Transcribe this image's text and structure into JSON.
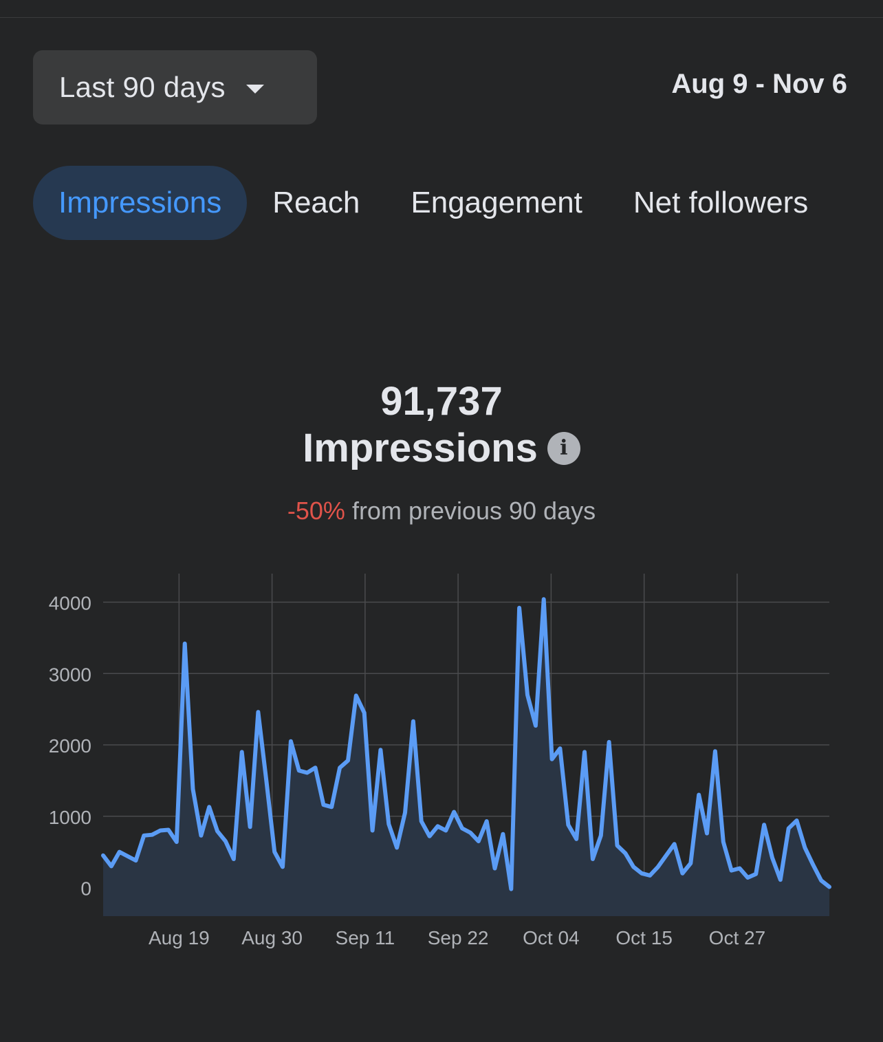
{
  "header": {
    "range_label": "Last 90 days",
    "date_range": "Aug 9 - Nov 6"
  },
  "tabs": [
    {
      "label": "Impressions",
      "active": true
    },
    {
      "label": "Reach",
      "active": false
    },
    {
      "label": "Engagement",
      "active": false
    },
    {
      "label": "Net followers",
      "active": false
    }
  ],
  "summary": {
    "total": "91,737",
    "metric": "Impressions",
    "change_pct": "-50%",
    "change_text": "from previous 90 days"
  },
  "colors": {
    "line": "#5b9cf5",
    "fill": "#2a3544",
    "accent": "#4599ff",
    "negative": "#e0534a"
  },
  "chart_data": {
    "type": "area",
    "xlabel": "",
    "ylabel": "",
    "ylim": [
      -400,
      4400
    ],
    "yticks": [
      0,
      1000,
      2000,
      3000,
      4000
    ],
    "xtick_labels": [
      "Aug 19",
      "Aug 30",
      "Sep 11",
      "Sep 22",
      "Oct 04",
      "Oct 15",
      "Oct 27"
    ],
    "xtick_index": [
      9.3,
      20.7,
      32.1,
      43.5,
      54.9,
      66.3,
      77.7
    ],
    "grid": true,
    "legend": false,
    "series": [
      {
        "values": [
          450,
          300,
          500,
          440,
          380,
          730,
          740,
          800,
          810,
          640,
          3420,
          1380,
          730,
          1130,
          790,
          650,
          400,
          1900,
          850,
          2460,
          1500,
          500,
          290,
          2050,
          1640,
          1610,
          1680,
          1160,
          1130,
          1680,
          1780,
          2690,
          2450,
          800,
          1930,
          890,
          560,
          1050,
          2330,
          930,
          720,
          860,
          800,
          1060,
          830,
          770,
          650,
          930,
          270,
          750,
          -20,
          3920,
          2700,
          2270,
          4040,
          1800,
          1950,
          880,
          680,
          1900,
          400,
          730,
          2040,
          590,
          480,
          290,
          200,
          170,
          290,
          450,
          610,
          200,
          340,
          1300,
          760,
          1910,
          640,
          240,
          270,
          140,
          190,
          880,
          420,
          110,
          830,
          940,
          560,
          320,
          100,
          10
        ]
      }
    ]
  }
}
